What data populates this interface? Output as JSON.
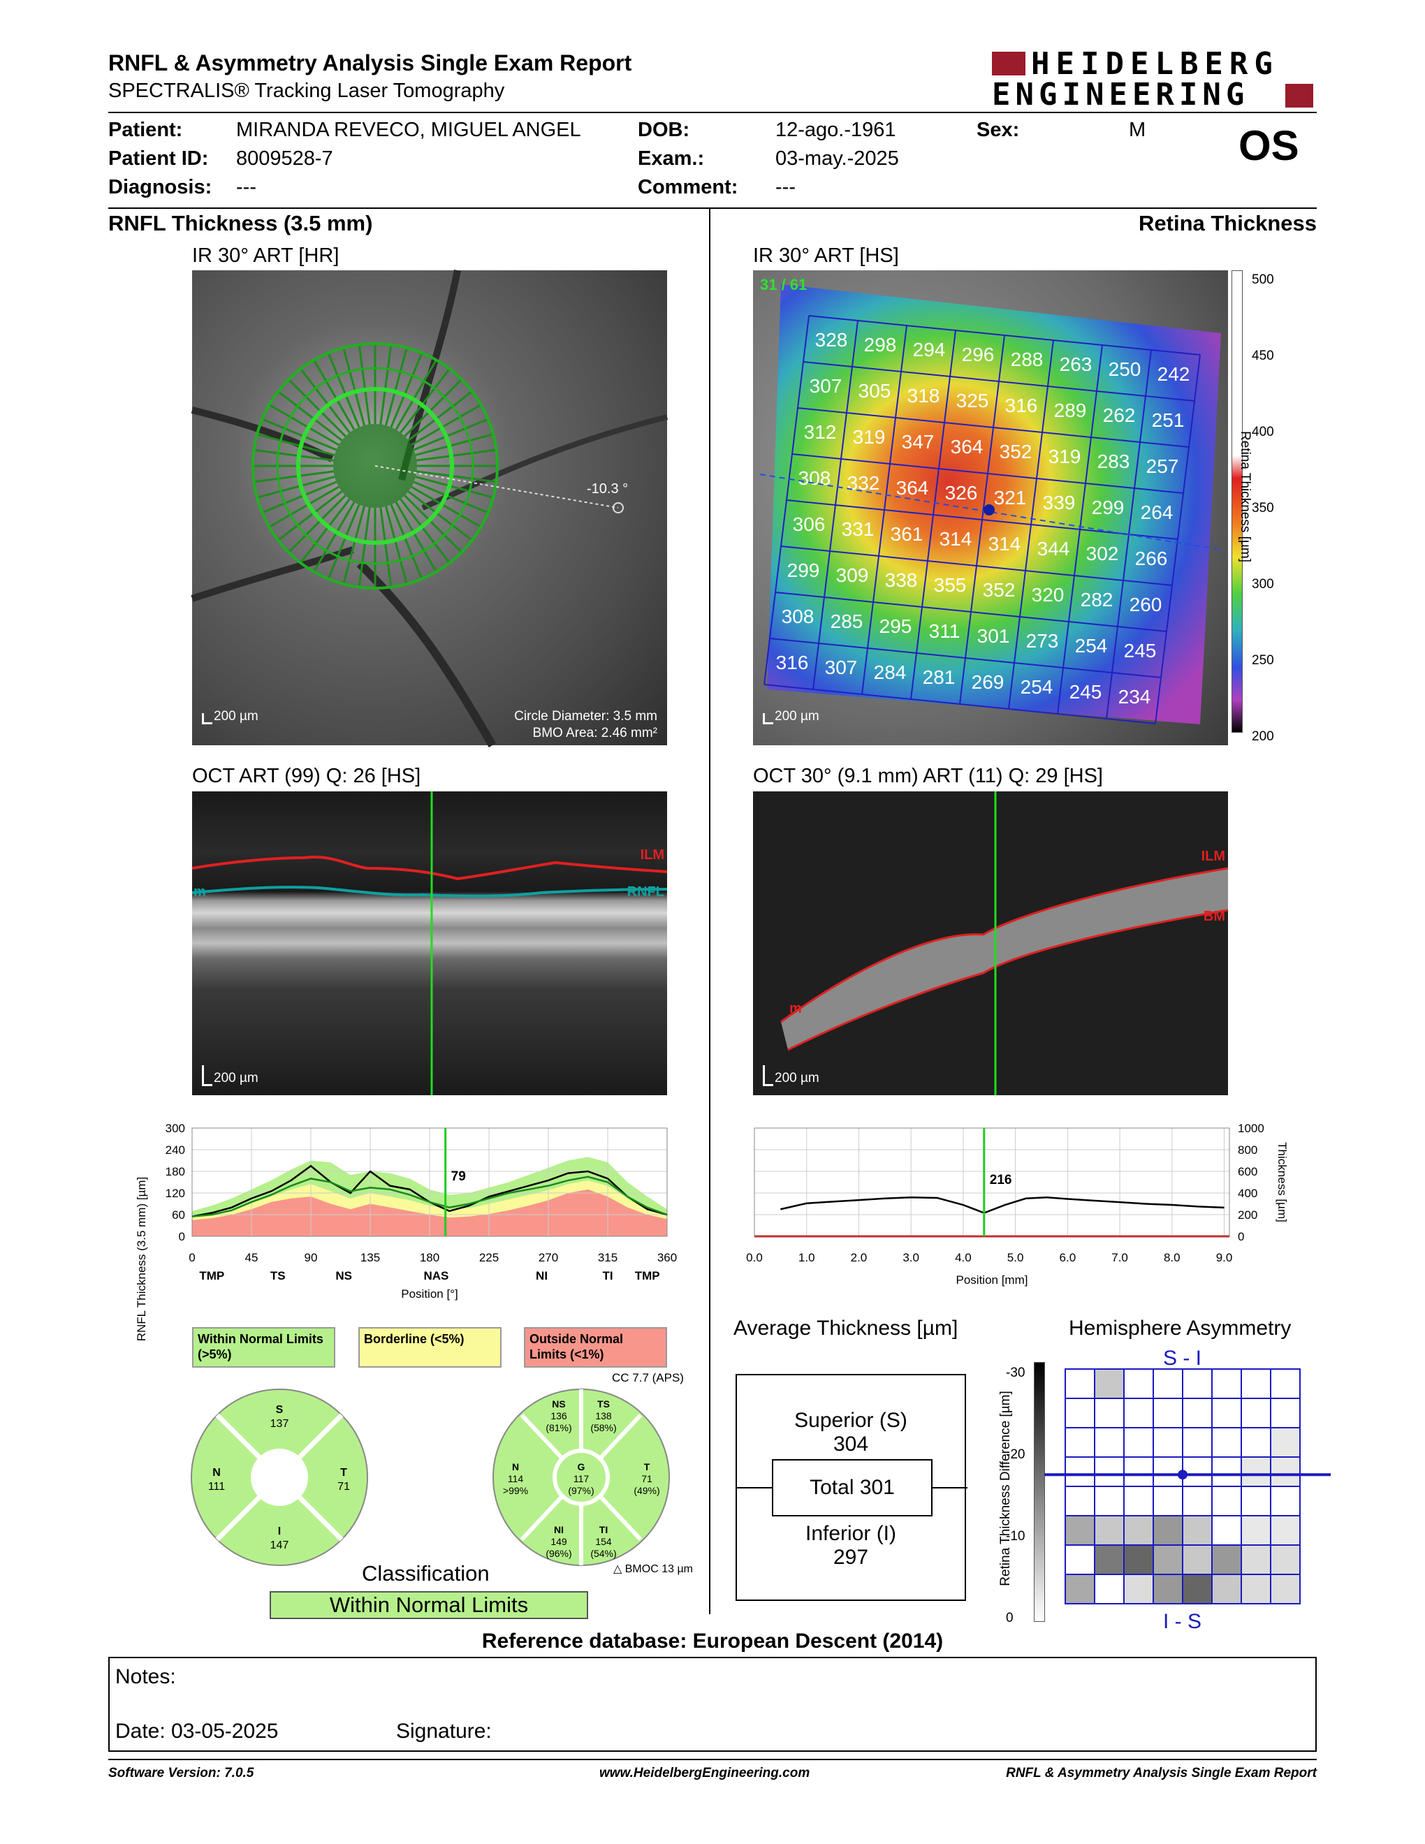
{
  "header": {
    "title": "RNFL & Asymmetry Analysis Single Exam Report",
    "subtitle": "SPECTRALIS® Tracking Laser Tomography",
    "brand_line1": "HEIDELBERG",
    "brand_line2": "ENGINEERING",
    "eye": "OS"
  },
  "patient": {
    "patient_label": "Patient:",
    "patient_value": "MIRANDA REVECO, MIGUEL ANGEL",
    "id_label": "Patient ID:",
    "id_value": "8009528-7",
    "diagnosis_label": "Diagnosis:",
    "diagnosis_value": "---",
    "dob_label": "DOB:",
    "dob_value": "12-ago.-1961",
    "exam_label": "Exam.:",
    "exam_value": "03-may.-2025",
    "comment_label": "Comment:",
    "comment_value": "---",
    "sex_label": "Sex:",
    "sex_value": "M"
  },
  "left": {
    "section_title": "RNFL Thickness (3.5 mm)",
    "ir_title": "IR 30° ART [HR]",
    "ir_angle": "-10.3 °",
    "ir_scale": "200 µm",
    "ir_circle": "Circle Diameter: 3.5 mm",
    "ir_bmo": "BMO Area: 2.46 mm²",
    "oct_title": "OCT ART (99) Q: 26 [HS]",
    "oct_scale": "200 µm",
    "oct_ilm": "ILM",
    "oct_rnfl": "RNFL",
    "oct_m": "m"
  },
  "right": {
    "section_title": "Retina Thickness",
    "ir_title": "IR 30° ART [HS]",
    "ir_counter": "31 / 61",
    "ir_scale": "200 µm",
    "colorbar_label": "Retina Thickness [µm]",
    "colorbar_ticks": [
      "500",
      "450",
      "400",
      "350",
      "300",
      "250",
      "200"
    ],
    "oct_title": "OCT 30° (9.1 mm) ART (11) Q: 29 [HS]",
    "oct_scale": "200 µm",
    "oct_ilm": "ILM",
    "oct_bm": "BM",
    "oct_m": "m"
  },
  "grid_values": [
    [
      328,
      298,
      294,
      296,
      288,
      263,
      250,
      242
    ],
    [
      307,
      305,
      318,
      325,
      316,
      289,
      262,
      251
    ],
    [
      312,
      319,
      347,
      364,
      352,
      319,
      283,
      257
    ],
    [
      308,
      332,
      364,
      326,
      321,
      339,
      299,
      264
    ],
    [
      306,
      331,
      361,
      314,
      314,
      344,
      302,
      266
    ],
    [
      299,
      309,
      338,
      355,
      352,
      320,
      282,
      260
    ],
    [
      308,
      285,
      295,
      311,
      301,
      273,
      254,
      245
    ],
    [
      316,
      307,
      284,
      281,
      269,
      254,
      245,
      234
    ]
  ],
  "chart_data": [
    {
      "type": "line",
      "ylabel": "RNFL Thickness (3.5 mm) [µm]",
      "xlabel": "Position [°]",
      "x_ticks": [
        "0",
        "45",
        "90",
        "135",
        "180",
        "225",
        "270",
        "315",
        "360"
      ],
      "y_ticks": [
        "0",
        "60",
        "120",
        "180",
        "240",
        "300"
      ],
      "ylim": [
        0,
        300
      ],
      "xlim": [
        0,
        360
      ],
      "sector_labels": [
        "TMP",
        "TS",
        "NS",
        "NAS",
        "NI",
        "TI",
        "TMP"
      ],
      "sector_positions": [
        15,
        65,
        115,
        185,
        265,
        315,
        345
      ],
      "cursor_x": 192,
      "cursor_value": "79",
      "x": [
        0,
        15,
        30,
        45,
        60,
        75,
        90,
        105,
        120,
        135,
        150,
        165,
        180,
        195,
        210,
        225,
        240,
        255,
        270,
        285,
        300,
        315,
        330,
        345,
        360
      ],
      "series": [
        {
          "values": [
            55,
            65,
            80,
            105,
            125,
            155,
            195,
            150,
            120,
            180,
            140,
            130,
            95,
            70,
            85,
            110,
            125,
            140,
            155,
            175,
            180,
            160,
            110,
            75,
            60
          ]
        },
        {
          "values": [
            55,
            60,
            72,
            95,
            115,
            140,
            160,
            150,
            125,
            135,
            130,
            115,
            95,
            80,
            90,
            105,
            120,
            130,
            140,
            155,
            165,
            150,
            110,
            80,
            60
          ]
        }
      ],
      "normal_band": [
        70,
        85,
        105,
        130,
        155,
        185,
        210,
        205,
        170,
        180,
        175,
        160,
        130,
        115,
        120,
        135,
        150,
        170,
        190,
        210,
        220,
        205,
        150,
        110,
        75
      ],
      "borderline_band": [
        55,
        62,
        75,
        92,
        110,
        130,
        145,
        125,
        105,
        120,
        110,
        100,
        85,
        75,
        78,
        90,
        102,
        115,
        128,
        145,
        155,
        140,
        105,
        75,
        58
      ],
      "outside_band": [
        45,
        50,
        60,
        75,
        95,
        105,
        110,
        90,
        75,
        90,
        80,
        70,
        60,
        52,
        55,
        62,
        72,
        85,
        100,
        120,
        130,
        110,
        80,
        60,
        48
      ]
    },
    {
      "type": "line",
      "ylabel": "Thickness [µm]",
      "xlabel": "Position [mm]",
      "x_ticks": [
        "0.0",
        "1.0",
        "2.0",
        "3.0",
        "4.0",
        "5.0",
        "6.0",
        "7.0",
        "8.0",
        "9.0"
      ],
      "y_ticks": [
        "0",
        "200",
        "400",
        "600",
        "800",
        "1000"
      ],
      "ylim": [
        0,
        1000
      ],
      "xlim": [
        0,
        9.1
      ],
      "cursor_x": 4.4,
      "cursor_value": "216",
      "x": [
        0.5,
        1.0,
        1.5,
        2.0,
        2.5,
        3.0,
        3.5,
        4.0,
        4.4,
        4.8,
        5.2,
        5.6,
        6.0,
        6.5,
        7.0,
        7.5,
        8.0,
        8.5,
        9.0
      ],
      "series": [
        {
          "values": [
            250,
            305,
            320,
            335,
            350,
            360,
            355,
            290,
            216,
            290,
            350,
            360,
            345,
            330,
            315,
            300,
            290,
            275,
            265
          ]
        }
      ]
    }
  ],
  "legend": {
    "within": "Within Normal Limits (>5%)",
    "borderline": "Borderline (<5%)",
    "outside": "Outside Normal Limits (<1%)"
  },
  "sectors_left": {
    "S": "137",
    "N": "111",
    "T": "71",
    "I": "147"
  },
  "sectors_right": {
    "cc": "CC 7.7 (APS)",
    "NS_label": "NS",
    "NS_val": "136",
    "NS_pct": "(81%)",
    "TS_label": "TS",
    "TS_val": "138",
    "TS_pct": "(58%)",
    "N_label": "N",
    "N_val": "114",
    "N_pct": ">99%",
    "G_label": "G",
    "G_val": "117",
    "G_pct": "(97%)",
    "T_label": "T",
    "T_val": "71",
    "T_pct": "(49%)",
    "NI_label": "NI",
    "NI_val": "149",
    "NI_pct": "(96%)",
    "TI_label": "TI",
    "TI_val": "154",
    "TI_pct": "(54%)",
    "bmoc": "BMOC 13 µm"
  },
  "classification": {
    "label": "Classification",
    "value": "Within Normal Limits"
  },
  "avg_thickness": {
    "title": "Average Thickness [µm]",
    "superior_label": "Superior (S)",
    "superior_value": "304",
    "total_label": "Total 301",
    "inferior_label": "Inferior (I)",
    "inferior_value": "297"
  },
  "hemisphere": {
    "title": "Hemisphere Asymmetry",
    "top_label": "S - I",
    "bottom_label": "I - S",
    "axis_label": "Retina Thickness Difference [µm]",
    "axis_ticks": [
      "-30",
      "-20",
      "-10",
      "0"
    ],
    "cells": [
      [
        0,
        3,
        0,
        0,
        0,
        0,
        0,
        0
      ],
      [
        0,
        0,
        0,
        0,
        0,
        0,
        0,
        0
      ],
      [
        0,
        0,
        0,
        0,
        0,
        0,
        0,
        1
      ],
      [
        0,
        0,
        0,
        0,
        0,
        0,
        1,
        1
      ],
      [
        4,
        3,
        3,
        5,
        3,
        0,
        1,
        1
      ],
      [
        0,
        6,
        7,
        4,
        3,
        5,
        2,
        2
      ],
      [
        4,
        0,
        2,
        5,
        7,
        3,
        2,
        2
      ]
    ]
  },
  "reference": "Reference database: European Descent (2014)",
  "notes": {
    "notes_label": "Notes:",
    "date_label": "Date: 03-05-2025",
    "signature_label": "Signature:"
  },
  "footer": {
    "software": "Software Version: 7.0.5",
    "website": "www.HeidelbergEngineering.com",
    "report": "RNFL & Asymmetry Analysis Single Exam Report"
  }
}
